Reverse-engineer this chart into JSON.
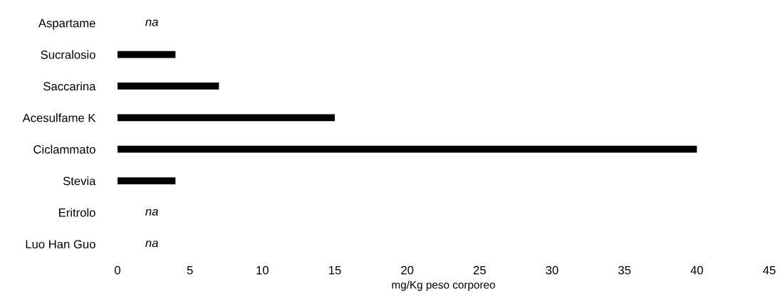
{
  "chart_data": {
    "type": "bar",
    "orientation": "horizontal",
    "xlabel": "mg/Kg peso corporeo",
    "categories": [
      "Aspartame",
      "Sucralosio",
      "Saccarina",
      "Acesulfame K",
      "Ciclammato",
      "Stevia",
      "Eritrolo",
      "Luo Han Guo"
    ],
    "values": [
      null,
      4,
      7,
      15,
      40,
      4,
      null,
      null
    ],
    "value_labels": [
      "na",
      null,
      null,
      null,
      null,
      null,
      "na",
      "na"
    ],
    "color": "#000000",
    "xlim": [
      0,
      45
    ],
    "xticks": [
      0,
      5,
      10,
      15,
      20,
      25,
      30,
      35,
      40,
      45
    ],
    "grid": false,
    "legend": false
  }
}
